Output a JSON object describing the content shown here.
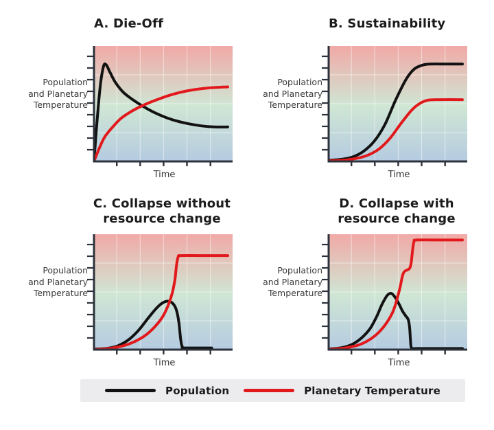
{
  "figure": {
    "shared_ylabel_lines": [
      "Population",
      "and Planetary",
      "Temperature"
    ]
  },
  "colors": {
    "background": "#ffffff",
    "gradient_top": "#f1a9a6",
    "gradient_mid": "#cfe6d4",
    "gradient_bottom": "#b5cbe1",
    "grid": "rgba(255,255,255,0.45)",
    "axis": "#2c323b",
    "population": "#121212",
    "temperature": "#e2191c",
    "legend_bg": "#ececee"
  },
  "legend": {
    "items": [
      {
        "label": "Population",
        "color": "#121212"
      },
      {
        "label": "Planetary Temperature",
        "color": "#e2191c"
      }
    ]
  },
  "chart_data": [
    {
      "panel": "A",
      "type": "line",
      "title": "A. Die-Off",
      "title_lines": [
        "A. Die-Off"
      ],
      "xlabel": "Time",
      "ylabel": "Population and Planetary Temperature",
      "x_range": [
        0,
        1
      ],
      "y_range": [
        0,
        1
      ],
      "axes_labeled_numerically": false,
      "series": [
        {
          "name": "Population",
          "color": "#121212",
          "points": [
            [
              0,
              0
            ],
            [
              0.02,
              0.32
            ],
            [
              0.045,
              0.66
            ],
            [
              0.07,
              0.85
            ],
            [
              0.09,
              0.87
            ],
            [
              0.12,
              0.8
            ],
            [
              0.16,
              0.71
            ],
            [
              0.22,
              0.62
            ],
            [
              0.29,
              0.555
            ],
            [
              0.36,
              0.5
            ],
            [
              0.45,
              0.44
            ],
            [
              0.56,
              0.385
            ],
            [
              0.68,
              0.345
            ],
            [
              0.8,
              0.32
            ],
            [
              0.9,
              0.31
            ],
            [
              1,
              0.31
            ]
          ]
        },
        {
          "name": "Planetary Temperature",
          "color": "#e2191c",
          "points": [
            [
              0,
              0
            ],
            [
              0.04,
              0.12
            ],
            [
              0.08,
              0.22
            ],
            [
              0.14,
              0.31
            ],
            [
              0.2,
              0.385
            ],
            [
              0.28,
              0.45
            ],
            [
              0.36,
              0.5
            ],
            [
              0.46,
              0.55
            ],
            [
              0.58,
              0.6
            ],
            [
              0.7,
              0.635
            ],
            [
              0.85,
              0.66
            ],
            [
              1,
              0.67
            ]
          ]
        }
      ]
    },
    {
      "panel": "B",
      "type": "line",
      "title": "B. Sustainability",
      "title_lines": [
        "B. Sustainability"
      ],
      "xlabel": "Time",
      "ylabel": "Population and Planetary Temperature",
      "x_range": [
        0,
        1
      ],
      "y_range": [
        0,
        1
      ],
      "axes_labeled_numerically": false,
      "series": [
        {
          "name": "Population",
          "color": "#121212",
          "points": [
            [
              0,
              0.01
            ],
            [
              0.1,
              0.02
            ],
            [
              0.18,
              0.04
            ],
            [
              0.26,
              0.09
            ],
            [
              0.34,
              0.18
            ],
            [
              0.42,
              0.33
            ],
            [
              0.5,
              0.55
            ],
            [
              0.58,
              0.74
            ],
            [
              0.64,
              0.83
            ],
            [
              0.7,
              0.865
            ],
            [
              0.76,
              0.875
            ],
            [
              0.88,
              0.875
            ],
            [
              1,
              0.875
            ]
          ]
        },
        {
          "name": "Planetary Temperature",
          "color": "#e2191c",
          "points": [
            [
              0,
              0.005
            ],
            [
              0.12,
              0.012
            ],
            [
              0.22,
              0.03
            ],
            [
              0.3,
              0.06
            ],
            [
              0.38,
              0.115
            ],
            [
              0.46,
              0.21
            ],
            [
              0.54,
              0.34
            ],
            [
              0.62,
              0.46
            ],
            [
              0.68,
              0.52
            ],
            [
              0.74,
              0.55
            ],
            [
              0.82,
              0.555
            ],
            [
              1,
              0.555
            ]
          ]
        }
      ]
    },
    {
      "panel": "C",
      "type": "line",
      "title": "C. Collapse without resource change",
      "title_lines": [
        "C. Collapse without",
        "resource change"
      ],
      "xlabel": "Time",
      "ylabel": "Population and Planetary Temperature",
      "x_range": [
        0,
        1
      ],
      "y_range": [
        0,
        1
      ],
      "axes_labeled_numerically": false,
      "series": [
        {
          "name": "Population",
          "color": "#121212",
          "points": [
            [
              0,
              0.005
            ],
            [
              0.1,
              0.012
            ],
            [
              0.18,
              0.035
            ],
            [
              0.26,
              0.09
            ],
            [
              0.33,
              0.17
            ],
            [
              0.39,
              0.26
            ],
            [
              0.45,
              0.35
            ],
            [
              0.5,
              0.41
            ],
            [
              0.545,
              0.435
            ],
            [
              0.585,
              0.42
            ],
            [
              0.615,
              0.36
            ],
            [
              0.635,
              0.24
            ],
            [
              0.648,
              0.09
            ],
            [
              0.66,
              0.025
            ],
            [
              0.68,
              0.015
            ],
            [
              0.88,
              0.015
            ]
          ]
        },
        {
          "name": "Planetary Temperature",
          "color": "#e2191c",
          "points": [
            [
              0,
              0.002
            ],
            [
              0.12,
              0.012
            ],
            [
              0.22,
              0.035
            ],
            [
              0.3,
              0.07
            ],
            [
              0.38,
              0.125
            ],
            [
              0.45,
              0.2
            ],
            [
              0.51,
              0.29
            ],
            [
              0.555,
              0.4
            ],
            [
              0.585,
              0.51
            ],
            [
              0.605,
              0.63
            ],
            [
              0.617,
              0.76
            ],
            [
              0.63,
              0.835
            ],
            [
              0.65,
              0.845
            ],
            [
              0.8,
              0.845
            ],
            [
              1,
              0.845
            ]
          ]
        }
      ]
    },
    {
      "panel": "D",
      "type": "line",
      "title": "D. Collapse with resource change",
      "title_lines": [
        "D. Collapse with",
        "resource change"
      ],
      "xlabel": "Time",
      "ylabel": "Population and Planetary Temperature",
      "x_range": [
        0,
        1
      ],
      "y_range": [
        0,
        1
      ],
      "axes_labeled_numerically": false,
      "series": [
        {
          "name": "Population",
          "color": "#121212",
          "points": [
            [
              0,
              0.005
            ],
            [
              0.1,
              0.018
            ],
            [
              0.18,
              0.05
            ],
            [
              0.25,
              0.11
            ],
            [
              0.31,
              0.19
            ],
            [
              0.36,
              0.3
            ],
            [
              0.4,
              0.41
            ],
            [
              0.44,
              0.49
            ],
            [
              0.47,
              0.505
            ],
            [
              0.5,
              0.465
            ],
            [
              0.53,
              0.4
            ],
            [
              0.55,
              0.35
            ],
            [
              0.575,
              0.305
            ],
            [
              0.595,
              0.27
            ],
            [
              0.605,
              0.2
            ],
            [
              0.612,
              0.08
            ],
            [
              0.62,
              0.015
            ],
            [
              0.66,
              0.01
            ],
            [
              0.85,
              0.01
            ],
            [
              1,
              0.01
            ]
          ]
        },
        {
          "name": "Planetary Temperature",
          "color": "#e2191c",
          "points": [
            [
              0,
              0.002
            ],
            [
              0.12,
              0.015
            ],
            [
              0.22,
              0.04
            ],
            [
              0.3,
              0.085
            ],
            [
              0.37,
              0.15
            ],
            [
              0.43,
              0.235
            ],
            [
              0.48,
              0.34
            ],
            [
              0.51,
              0.45
            ],
            [
              0.535,
              0.565
            ],
            [
              0.55,
              0.655
            ],
            [
              0.565,
              0.7
            ],
            [
              0.585,
              0.715
            ],
            [
              0.605,
              0.73
            ],
            [
              0.617,
              0.78
            ],
            [
              0.627,
              0.89
            ],
            [
              0.638,
              0.97
            ],
            [
              0.66,
              0.985
            ],
            [
              0.85,
              0.985
            ],
            [
              1,
              0.985
            ]
          ]
        }
      ]
    }
  ]
}
